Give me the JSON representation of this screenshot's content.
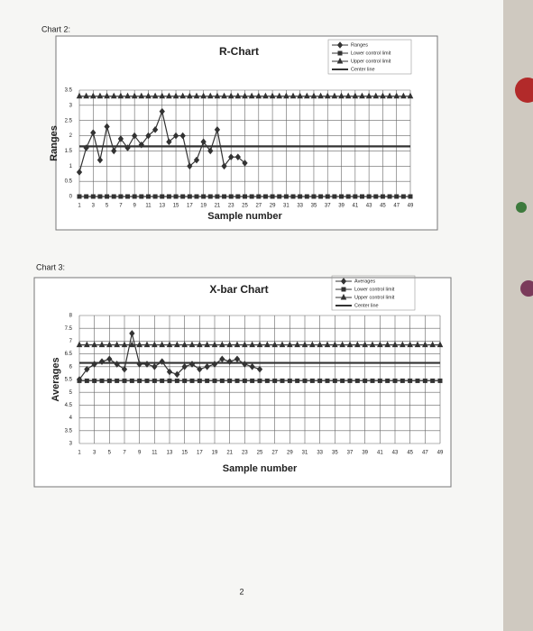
{
  "captions": [
    "Chart 2:",
    "Chart 3:"
  ],
  "page_number": "2",
  "chart_data": [
    {
      "type": "line",
      "title": "R-Chart",
      "x_label": "Sample number",
      "y_label": "Ranges",
      "x": [
        1,
        2,
        3,
        4,
        5,
        6,
        7,
        8,
        9,
        10,
        11,
        12,
        13,
        14,
        15,
        16,
        17,
        18,
        19,
        20,
        21,
        22,
        23,
        24,
        25,
        26,
        27,
        28,
        29,
        30,
        31,
        32,
        33,
        34,
        35,
        36,
        37,
        38,
        39,
        40,
        41,
        42,
        43,
        44,
        45,
        46,
        47,
        48,
        49
      ],
      "xlim": [
        1,
        49
      ],
      "xticks": [
        1,
        3,
        5,
        7,
        9,
        11,
        13,
        15,
        17,
        19,
        21,
        23,
        25,
        27,
        29,
        31,
        33,
        35,
        37,
        39,
        41,
        43,
        45,
        47,
        49
      ],
      "ylim": [
        0,
        3.5
      ],
      "yticks": [
        0,
        0.5,
        1,
        1.5,
        2,
        2.5,
        3,
        3.5
      ],
      "grid": true,
      "legend": "top-right",
      "series": [
        {
          "name": "Ranges",
          "color": "#333333",
          "marker": "diamond",
          "values": [
            0.8,
            1.6,
            2.1,
            1.2,
            2.3,
            1.5,
            1.9,
            1.6,
            2.0,
            1.7,
            2.0,
            2.2,
            2.8,
            1.8,
            2.0,
            2.0,
            1.0,
            1.2,
            1.8,
            1.5,
            2.2,
            1.0,
            1.3,
            1.3,
            1.1,
            null,
            null,
            null,
            null,
            null,
            null,
            null,
            null,
            null,
            null,
            null,
            null,
            null,
            null,
            null,
            null,
            null,
            null,
            null,
            null,
            null,
            null,
            null,
            null
          ]
        },
        {
          "name": "Lower control limit",
          "color": "#333333",
          "marker": "square",
          "values": [
            0,
            0,
            0,
            0,
            0,
            0,
            0,
            0,
            0,
            0,
            0,
            0,
            0,
            0,
            0,
            0,
            0,
            0,
            0,
            0,
            0,
            0,
            0,
            0,
            0,
            0,
            0,
            0,
            0,
            0,
            0,
            0,
            0,
            0,
            0,
            0,
            0,
            0,
            0,
            0,
            0,
            0,
            0,
            0,
            0,
            0,
            0,
            0,
            0
          ]
        },
        {
          "name": "Upper control limit",
          "color": "#333333",
          "marker": "triangle",
          "values": [
            3.3,
            3.3,
            3.3,
            3.3,
            3.3,
            3.3,
            3.3,
            3.3,
            3.3,
            3.3,
            3.3,
            3.3,
            3.3,
            3.3,
            3.3,
            3.3,
            3.3,
            3.3,
            3.3,
            3.3,
            3.3,
            3.3,
            3.3,
            3.3,
            3.3,
            3.3,
            3.3,
            3.3,
            3.3,
            3.3,
            3.3,
            3.3,
            3.3,
            3.3,
            3.3,
            3.3,
            3.3,
            3.3,
            3.3,
            3.3,
            3.3,
            3.3,
            3.3,
            3.3,
            3.3,
            3.3,
            3.3,
            3.3,
            3.3
          ]
        },
        {
          "name": "Center line",
          "color": "#333333",
          "values": [
            1.65,
            1.65,
            1.65,
            1.65,
            1.65,
            1.65,
            1.65,
            1.65,
            1.65,
            1.65,
            1.65,
            1.65,
            1.65,
            1.65,
            1.65,
            1.65,
            1.65,
            1.65,
            1.65,
            1.65,
            1.65,
            1.65,
            1.65,
            1.65,
            1.65,
            1.65,
            1.65,
            1.65,
            1.65,
            1.65,
            1.65,
            1.65,
            1.65,
            1.65,
            1.65,
            1.65,
            1.65,
            1.65,
            1.65,
            1.65,
            1.65,
            1.65,
            1.65,
            1.65,
            1.65,
            1.65,
            1.65,
            1.65,
            1.65
          ]
        }
      ]
    },
    {
      "type": "line",
      "title": "X-bar Chart",
      "x_label": "Sample number",
      "y_label": "Averages",
      "x": [
        1,
        2,
        3,
        4,
        5,
        6,
        7,
        8,
        9,
        10,
        11,
        12,
        13,
        14,
        15,
        16,
        17,
        18,
        19,
        20,
        21,
        22,
        23,
        24,
        25,
        26,
        27,
        28,
        29,
        30,
        31,
        32,
        33,
        34,
        35,
        36,
        37,
        38,
        39,
        40,
        41,
        42,
        43,
        44,
        45,
        46,
        47,
        48,
        49
      ],
      "xlim": [
        1,
        49
      ],
      "xticks": [
        1,
        3,
        5,
        7,
        9,
        11,
        13,
        15,
        17,
        19,
        21,
        23,
        25,
        27,
        29,
        31,
        33,
        35,
        37,
        39,
        41,
        43,
        45,
        47,
        49
      ],
      "ylim": [
        3,
        8
      ],
      "yticks": [
        3,
        3.5,
        4,
        4.5,
        5,
        5.5,
        6,
        6.5,
        7,
        7.5,
        8
      ],
      "grid": true,
      "legend": "top-right",
      "series": [
        {
          "name": "Averages",
          "color": "#333333",
          "marker": "diamond",
          "values": [
            5.5,
            5.9,
            6.1,
            6.2,
            6.3,
            6.1,
            5.9,
            7.3,
            6.1,
            6.1,
            6.0,
            6.2,
            5.8,
            5.7,
            6.0,
            6.1,
            5.9,
            6.0,
            6.1,
            6.3,
            6.2,
            6.3,
            6.1,
            6.0,
            5.9,
            null,
            null,
            null,
            null,
            null,
            null,
            null,
            null,
            null,
            null,
            null,
            null,
            null,
            null,
            null,
            null,
            null,
            null,
            null,
            null,
            null,
            null,
            null,
            null
          ]
        },
        {
          "name": "Lower control limit",
          "color": "#333333",
          "marker": "square",
          "values": [
            5.45,
            5.45,
            5.45,
            5.45,
            5.45,
            5.45,
            5.45,
            5.45,
            5.45,
            5.45,
            5.45,
            5.45,
            5.45,
            5.45,
            5.45,
            5.45,
            5.45,
            5.45,
            5.45,
            5.45,
            5.45,
            5.45,
            5.45,
            5.45,
            5.45,
            5.45,
            5.45,
            5.45,
            5.45,
            5.45,
            5.45,
            5.45,
            5.45,
            5.45,
            5.45,
            5.45,
            5.45,
            5.45,
            5.45,
            5.45,
            5.45,
            5.45,
            5.45,
            5.45,
            5.45,
            5.45,
            5.45,
            5.45,
            5.45
          ]
        },
        {
          "name": "Upper control limit",
          "color": "#333333",
          "marker": "triangle",
          "values": [
            6.85,
            6.85,
            6.85,
            6.85,
            6.85,
            6.85,
            6.85,
            6.85,
            6.85,
            6.85,
            6.85,
            6.85,
            6.85,
            6.85,
            6.85,
            6.85,
            6.85,
            6.85,
            6.85,
            6.85,
            6.85,
            6.85,
            6.85,
            6.85,
            6.85,
            6.85,
            6.85,
            6.85,
            6.85,
            6.85,
            6.85,
            6.85,
            6.85,
            6.85,
            6.85,
            6.85,
            6.85,
            6.85,
            6.85,
            6.85,
            6.85,
            6.85,
            6.85,
            6.85,
            6.85,
            6.85,
            6.85,
            6.85,
            6.85
          ]
        },
        {
          "name": "Center line",
          "color": "#333333",
          "values": [
            6.15,
            6.15,
            6.15,
            6.15,
            6.15,
            6.15,
            6.15,
            6.15,
            6.15,
            6.15,
            6.15,
            6.15,
            6.15,
            6.15,
            6.15,
            6.15,
            6.15,
            6.15,
            6.15,
            6.15,
            6.15,
            6.15,
            6.15,
            6.15,
            6.15,
            6.15,
            6.15,
            6.15,
            6.15,
            6.15,
            6.15,
            6.15,
            6.15,
            6.15,
            6.15,
            6.15,
            6.15,
            6.15,
            6.15,
            6.15,
            6.15,
            6.15,
            6.15,
            6.15,
            6.15,
            6.15,
            6.15,
            6.15,
            6.15
          ]
        }
      ]
    }
  ]
}
